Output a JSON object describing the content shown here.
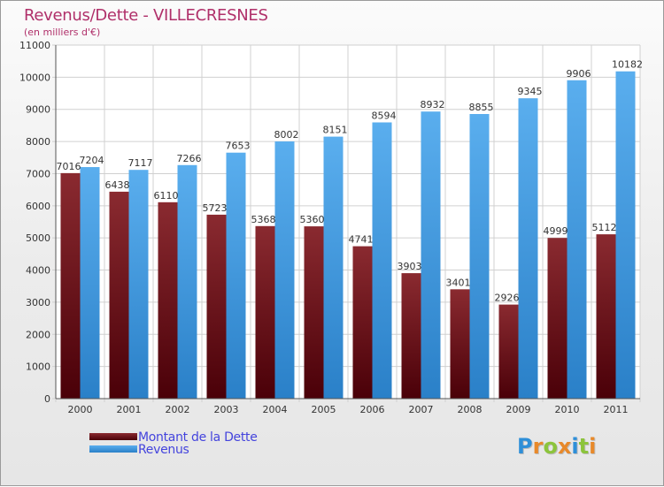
{
  "title": "Revenus/Dette - VILLECRESNES",
  "subtitle": "(en milliers d'€)",
  "logo": {
    "text": "Proxiti",
    "letters": [
      {
        "ch": "P",
        "color": "#2e8fd8"
      },
      {
        "ch": "r",
        "color": "#e8892a"
      },
      {
        "ch": "o",
        "color": "#8cc43c"
      },
      {
        "ch": "x",
        "color": "#e8892a"
      },
      {
        "ch": "i",
        "color": "#2e8fd8"
      },
      {
        "ch": "t",
        "color": "#8cc43c"
      },
      {
        "ch": "i",
        "color": "#e8892a"
      }
    ]
  },
  "legend": [
    {
      "label": "Montant de la Dette",
      "color": "#6b0c14"
    },
    {
      "label": "Revenus",
      "color": "#3a97e0"
    }
  ],
  "chart_data": {
    "type": "bar",
    "title": "Revenus/Dette - VILLECRESNES",
    "subtitle": "(en milliers d'€)",
    "categories": [
      "2000",
      "2001",
      "2002",
      "2003",
      "2004",
      "2005",
      "2006",
      "2007",
      "2008",
      "2009",
      "2010",
      "2011"
    ],
    "series": [
      {
        "name": "Montant de la Dette",
        "color": "#6b0c14",
        "values": [
          7016,
          6438,
          6110,
          5723,
          5368,
          5360,
          4741,
          3903,
          3401,
          2926,
          4999,
          5112
        ],
        "labels": [
          "7016",
          "6438",
          "6110",
          "5723",
          "5368",
          "5360",
          "4741",
          "3903",
          "3401",
          "2926",
          "4999",
          "5112"
        ]
      },
      {
        "name": "Revenus",
        "color": "#3a97e0",
        "values": [
          7204,
          7117,
          7266,
          7653,
          8002,
          8151,
          8594,
          8932,
          8855,
          9345,
          9906,
          10182
        ],
        "labels": [
          "7204",
          "7117",
          "7266",
          "7653",
          "8002",
          "8151",
          "8594",
          "8932",
          "8855",
          "9345",
          "9906",
          "10182"
        ]
      }
    ],
    "ylim": [
      0,
      11000
    ],
    "yticks": [
      0,
      1000,
      2000,
      3000,
      4000,
      5000,
      6000,
      7000,
      8000,
      9000,
      10000,
      11000
    ],
    "ytick_labels": [
      "0",
      "1000",
      "2000",
      "3000",
      "4000",
      "5000",
      "6000",
      "7000",
      "8000",
      "9000",
      "10000",
      "11000"
    ],
    "grid": true,
    "legend_position": "bottom-left"
  }
}
